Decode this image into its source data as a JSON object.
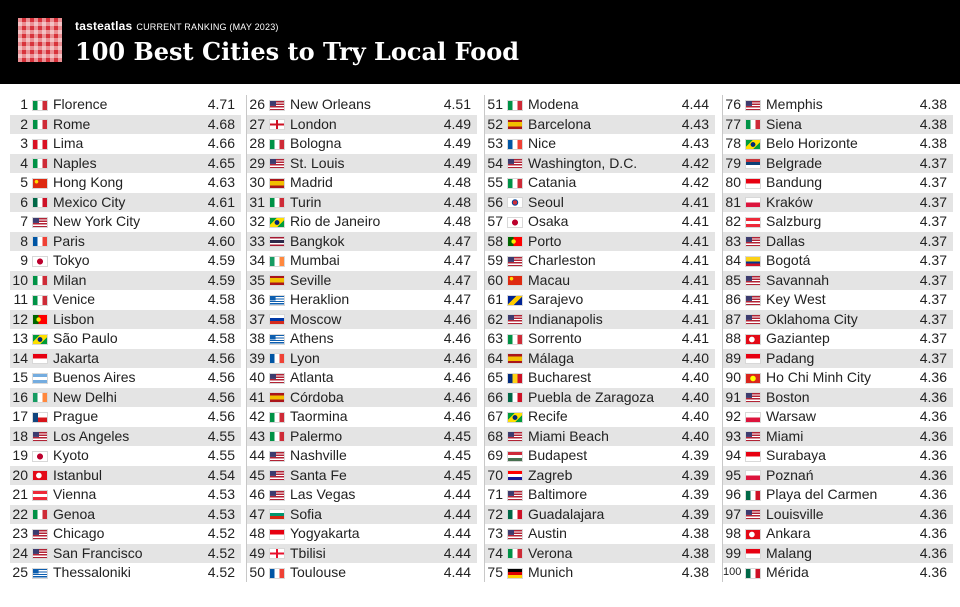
{
  "header": {
    "brand": "tasteatlas",
    "subtitle": "CURRENT RANKING (MAY 2023)",
    "title": "100 Best Cities to Try Local Food"
  },
  "columns": [
    [
      {
        "rank": "1",
        "city": "Florence",
        "score": "4.71",
        "flag": "it"
      },
      {
        "rank": "2",
        "city": "Rome",
        "score": "4.68",
        "flag": "it"
      },
      {
        "rank": "3",
        "city": "Lima",
        "score": "4.66",
        "flag": "pe"
      },
      {
        "rank": "4",
        "city": "Naples",
        "score": "4.65",
        "flag": "it"
      },
      {
        "rank": "5",
        "city": "Hong Kong",
        "score": "4.63",
        "flag": "cn"
      },
      {
        "rank": "6",
        "city": "Mexico City",
        "score": "4.61",
        "flag": "mx"
      },
      {
        "rank": "7",
        "city": "New York City",
        "score": "4.60",
        "flag": "us"
      },
      {
        "rank": "8",
        "city": "Paris",
        "score": "4.60",
        "flag": "fr"
      },
      {
        "rank": "9",
        "city": "Tokyo",
        "score": "4.59",
        "flag": "jp"
      },
      {
        "rank": "10",
        "city": "Milan",
        "score": "4.59",
        "flag": "it"
      },
      {
        "rank": "11",
        "city": "Venice",
        "score": "4.58",
        "flag": "it"
      },
      {
        "rank": "12",
        "city": "Lisbon",
        "score": "4.58",
        "flag": "pt"
      },
      {
        "rank": "13",
        "city": "São Paulo",
        "score": "4.58",
        "flag": "br"
      },
      {
        "rank": "14",
        "city": "Jakarta",
        "score": "4.56",
        "flag": "id"
      },
      {
        "rank": "15",
        "city": "Buenos Aires",
        "score": "4.56",
        "flag": "ar"
      },
      {
        "rank": "16",
        "city": "New Delhi",
        "score": "4.56",
        "flag": "ie"
      },
      {
        "rank": "17",
        "city": "Prague",
        "score": "4.56",
        "flag": "cz"
      },
      {
        "rank": "18",
        "city": "Los Angeles",
        "score": "4.55",
        "flag": "us"
      },
      {
        "rank": "19",
        "city": "Kyoto",
        "score": "4.55",
        "flag": "jp"
      },
      {
        "rank": "20",
        "city": "Istanbul",
        "score": "4.54",
        "flag": "tr"
      },
      {
        "rank": "21",
        "city": "Vienna",
        "score": "4.53",
        "flag": "at"
      },
      {
        "rank": "22",
        "city": "Genoa",
        "score": "4.53",
        "flag": "it"
      },
      {
        "rank": "23",
        "city": "Chicago",
        "score": "4.52",
        "flag": "us"
      },
      {
        "rank": "24",
        "city": "San Francisco",
        "score": "4.52",
        "flag": "us"
      },
      {
        "rank": "25",
        "city": "Thessaloniki",
        "score": "4.52",
        "flag": "gr"
      }
    ],
    [
      {
        "rank": "26",
        "city": "New Orleans",
        "score": "4.51",
        "flag": "us"
      },
      {
        "rank": "27",
        "city": "London",
        "score": "4.49",
        "flag": "gb"
      },
      {
        "rank": "28",
        "city": "Bologna",
        "score": "4.49",
        "flag": "it"
      },
      {
        "rank": "29",
        "city": "St. Louis",
        "score": "4.49",
        "flag": "us"
      },
      {
        "rank": "30",
        "city": "Madrid",
        "score": "4.48",
        "flag": "es"
      },
      {
        "rank": "31",
        "city": "Turin",
        "score": "4.48",
        "flag": "it"
      },
      {
        "rank": "32",
        "city": "Rio de Janeiro",
        "score": "4.48",
        "flag": "br"
      },
      {
        "rank": "33",
        "city": "Bangkok",
        "score": "4.47",
        "flag": "th"
      },
      {
        "rank": "34",
        "city": "Mumbai",
        "score": "4.47",
        "flag": "ie"
      },
      {
        "rank": "35",
        "city": "Seville",
        "score": "4.47",
        "flag": "es"
      },
      {
        "rank": "36",
        "city": "Heraklion",
        "score": "4.47",
        "flag": "gr"
      },
      {
        "rank": "37",
        "city": "Moscow",
        "score": "4.46",
        "flag": "ru"
      },
      {
        "rank": "38",
        "city": "Athens",
        "score": "4.46",
        "flag": "gr"
      },
      {
        "rank": "39",
        "city": "Lyon",
        "score": "4.46",
        "flag": "fr"
      },
      {
        "rank": "40",
        "city": "Atlanta",
        "score": "4.46",
        "flag": "us"
      },
      {
        "rank": "41",
        "city": "Córdoba",
        "score": "4.46",
        "flag": "es"
      },
      {
        "rank": "42",
        "city": "Taormina",
        "score": "4.46",
        "flag": "it"
      },
      {
        "rank": "43",
        "city": "Palermo",
        "score": "4.45",
        "flag": "it"
      },
      {
        "rank": "44",
        "city": "Nashville",
        "score": "4.45",
        "flag": "us"
      },
      {
        "rank": "45",
        "city": "Santa Fe",
        "score": "4.45",
        "flag": "us"
      },
      {
        "rank": "46",
        "city": "Las Vegas",
        "score": "4.44",
        "flag": "us"
      },
      {
        "rank": "47",
        "city": "Sofia",
        "score": "4.44",
        "flag": "bg"
      },
      {
        "rank": "48",
        "city": "Yogyakarta",
        "score": "4.44",
        "flag": "id"
      },
      {
        "rank": "49",
        "city": "Tbilisi",
        "score": "4.44",
        "flag": "ge"
      },
      {
        "rank": "50",
        "city": "Toulouse",
        "score": "4.44",
        "flag": "fr"
      }
    ],
    [
      {
        "rank": "51",
        "city": "Modena",
        "score": "4.44",
        "flag": "it"
      },
      {
        "rank": "52",
        "city": "Barcelona",
        "score": "4.43",
        "flag": "es"
      },
      {
        "rank": "53",
        "city": "Nice",
        "score": "4.43",
        "flag": "fr"
      },
      {
        "rank": "54",
        "city": "Washington, D.C.",
        "score": "4.42",
        "flag": "us"
      },
      {
        "rank": "55",
        "city": "Catania",
        "score": "4.42",
        "flag": "it"
      },
      {
        "rank": "56",
        "city": "Seoul",
        "score": "4.41",
        "flag": "kr"
      },
      {
        "rank": "57",
        "city": "Osaka",
        "score": "4.41",
        "flag": "jp"
      },
      {
        "rank": "58",
        "city": "Porto",
        "score": "4.41",
        "flag": "pt"
      },
      {
        "rank": "59",
        "city": "Charleston",
        "score": "4.41",
        "flag": "us"
      },
      {
        "rank": "60",
        "city": "Macau",
        "score": "4.41",
        "flag": "cn"
      },
      {
        "rank": "61",
        "city": "Sarajevo",
        "score": "4.41",
        "flag": "ba"
      },
      {
        "rank": "62",
        "city": "Indianapolis",
        "score": "4.41",
        "flag": "us"
      },
      {
        "rank": "63",
        "city": "Sorrento",
        "score": "4.41",
        "flag": "it"
      },
      {
        "rank": "64",
        "city": "Málaga",
        "score": "4.40",
        "flag": "es"
      },
      {
        "rank": "65",
        "city": "Bucharest",
        "score": "4.40",
        "flag": "ro"
      },
      {
        "rank": "66",
        "city": "Puebla de Zaragoza",
        "score": "4.40",
        "flag": "mx"
      },
      {
        "rank": "67",
        "city": "Recife",
        "score": "4.40",
        "flag": "br"
      },
      {
        "rank": "68",
        "city": "Miami Beach",
        "score": "4.40",
        "flag": "us"
      },
      {
        "rank": "69",
        "city": "Budapest",
        "score": "4.39",
        "flag": "hu"
      },
      {
        "rank": "70",
        "city": "Zagreb",
        "score": "4.39",
        "flag": "hr"
      },
      {
        "rank": "71",
        "city": "Baltimore",
        "score": "4.39",
        "flag": "us"
      },
      {
        "rank": "72",
        "city": "Guadalajara",
        "score": "4.39",
        "flag": "mx"
      },
      {
        "rank": "73",
        "city": "Austin",
        "score": "4.38",
        "flag": "us"
      },
      {
        "rank": "74",
        "city": "Verona",
        "score": "4.38",
        "flag": "it"
      },
      {
        "rank": "75",
        "city": "Munich",
        "score": "4.38",
        "flag": "de"
      }
    ],
    [
      {
        "rank": "76",
        "city": "Memphis",
        "score": "4.38",
        "flag": "us"
      },
      {
        "rank": "77",
        "city": "Siena",
        "score": "4.38",
        "flag": "it"
      },
      {
        "rank": "78",
        "city": "Belo Horizonte",
        "score": "4.38",
        "flag": "br"
      },
      {
        "rank": "79",
        "city": "Belgrade",
        "score": "4.37",
        "flag": "rs"
      },
      {
        "rank": "80",
        "city": "Bandung",
        "score": "4.37",
        "flag": "id"
      },
      {
        "rank": "81",
        "city": "Kraków",
        "score": "4.37",
        "flag": "pl"
      },
      {
        "rank": "82",
        "city": "Salzburg",
        "score": "4.37",
        "flag": "at"
      },
      {
        "rank": "83",
        "city": "Dallas",
        "score": "4.37",
        "flag": "us"
      },
      {
        "rank": "84",
        "city": "Bogotá",
        "score": "4.37",
        "flag": "co"
      },
      {
        "rank": "85",
        "city": "Savannah",
        "score": "4.37",
        "flag": "us"
      },
      {
        "rank": "86",
        "city": "Key West",
        "score": "4.37",
        "flag": "us"
      },
      {
        "rank": "87",
        "city": "Oklahoma City",
        "score": "4.37",
        "flag": "us"
      },
      {
        "rank": "88",
        "city": "Gaziantep",
        "score": "4.37",
        "flag": "tr"
      },
      {
        "rank": "89",
        "city": "Padang",
        "score": "4.37",
        "flag": "id"
      },
      {
        "rank": "90",
        "city": "Ho Chi Minh City",
        "score": "4.36",
        "flag": "vn"
      },
      {
        "rank": "91",
        "city": "Boston",
        "score": "4.36",
        "flag": "us"
      },
      {
        "rank": "92",
        "city": "Warsaw",
        "score": "4.36",
        "flag": "pl"
      },
      {
        "rank": "93",
        "city": "Miami",
        "score": "4.36",
        "flag": "us"
      },
      {
        "rank": "94",
        "city": "Surabaya",
        "score": "4.36",
        "flag": "id"
      },
      {
        "rank": "95",
        "city": "Poznań",
        "score": "4.36",
        "flag": "pl"
      },
      {
        "rank": "96",
        "city": "Playa del Carmen",
        "score": "4.36",
        "flag": "mx"
      },
      {
        "rank": "97",
        "city": "Louisville",
        "score": "4.36",
        "flag": "us"
      },
      {
        "rank": "98",
        "city": "Ankara",
        "score": "4.36",
        "flag": "tr"
      },
      {
        "rank": "99",
        "city": "Malang",
        "score": "4.36",
        "flag": "id"
      },
      {
        "rank": "100",
        "city": "Mérida",
        "score": "4.36",
        "flag": "mx"
      }
    ]
  ]
}
